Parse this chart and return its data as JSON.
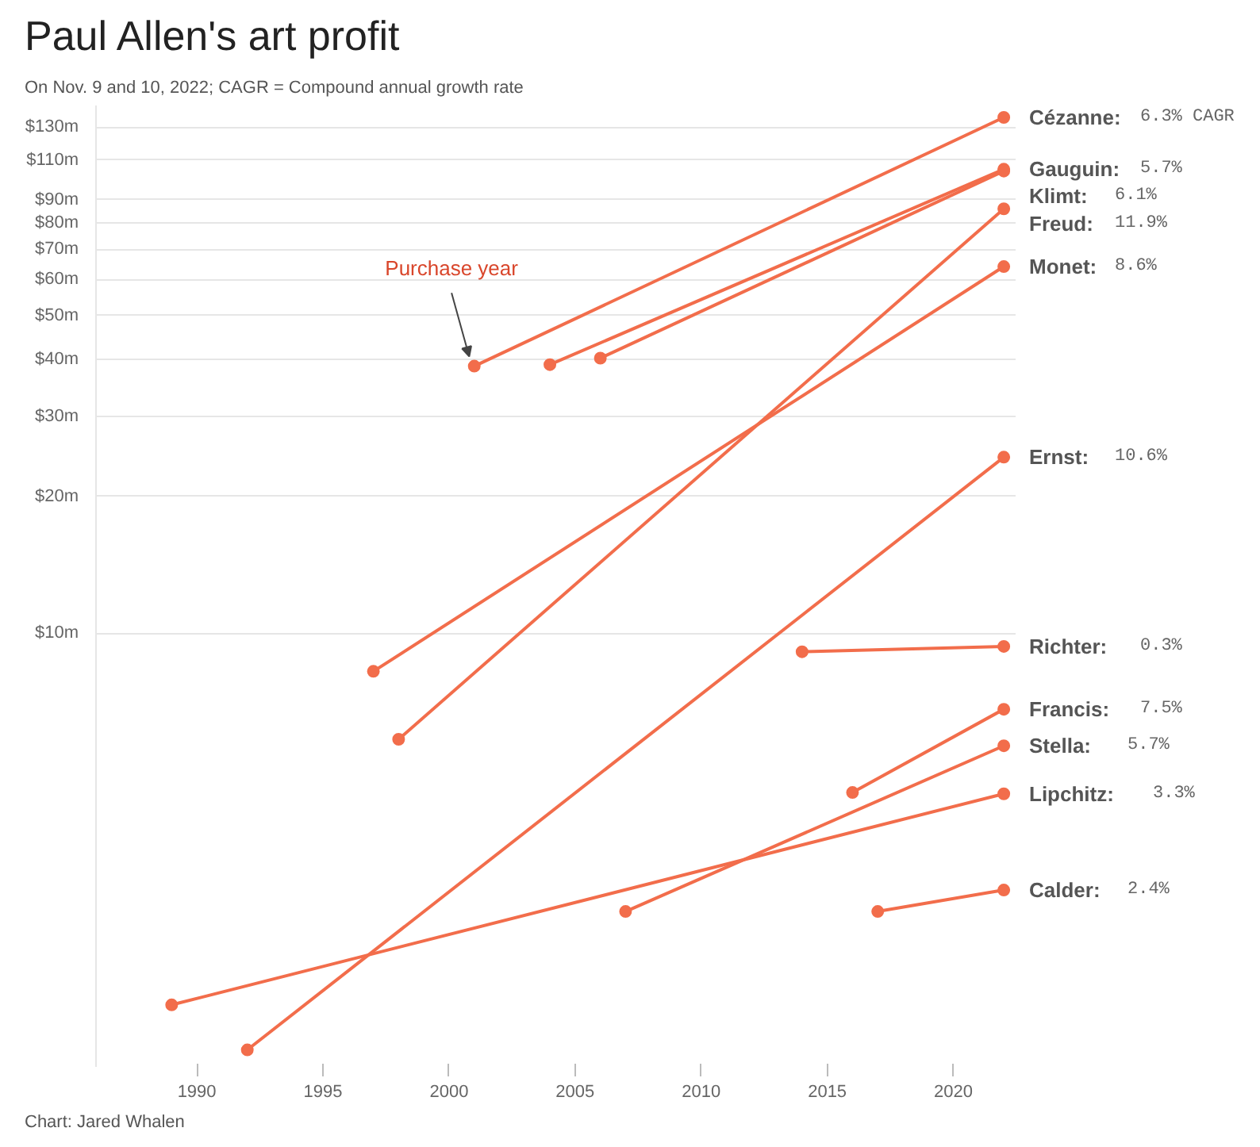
{
  "chart_data": {
    "type": "line",
    "title": "Paul Allen's art profit",
    "subtitle": "On Nov. 9 and 10, 2022; CAGR = Compound annual growth rate",
    "log": "y",
    "grid": "y",
    "marker": "circle",
    "line_style": "solid",
    "legend": false,
    "xlim": [
      1986,
      2022.5
    ],
    "xticks": [
      1990,
      1995,
      2000,
      2005,
      2010,
      2015,
      2020
    ],
    "ylim": [
      1.11,
      145
    ],
    "yticks": [
      {
        "value": 10,
        "label": "$10m"
      },
      {
        "value": 20,
        "label": "$20m"
      },
      {
        "value": 30,
        "label": "$30m"
      },
      {
        "value": 40,
        "label": "$40m"
      },
      {
        "value": 50,
        "label": "$50m"
      },
      {
        "value": 60,
        "label": "$60m"
      },
      {
        "value": 70,
        "label": "$70m"
      },
      {
        "value": 80,
        "label": "$80m"
      },
      {
        "value": 90,
        "label": "$90m"
      },
      {
        "value": 110,
        "label": "$110m"
      },
      {
        "value": 130,
        "label": "$130m"
      }
    ],
    "series": [
      {
        "name": "Cézanne: 6.3% CAGR",
        "color": "#f26d4b",
        "x": [
          2001,
          2022
        ],
        "values": [
          38.7,
          136.5
        ]
      },
      {
        "name": "Gauguin: 5.7%",
        "color": "#f26d4b",
        "x": [
          2004,
          2022
        ],
        "values": [
          39.0,
          105
        ]
      },
      {
        "name": "Klimt: 6.1%",
        "color": "#f26d4b",
        "x": [
          2006,
          2022
        ],
        "values": [
          40.3,
          104
        ]
      },
      {
        "name": "Freud: 11.9%",
        "color": "#f26d4b",
        "x": [
          1998,
          2022
        ],
        "values": [
          5.84,
          85.9
        ]
      },
      {
        "name": "Monet: 8.6%",
        "color": "#f26d4b",
        "x": [
          1997,
          2022
        ],
        "values": [
          8.24,
          64.1
        ]
      },
      {
        "name": "Ernst: 10.6%",
        "color": "#f26d4b",
        "x": [
          1992,
          2022
        ],
        "values": [
          1.21,
          24.4
        ]
      },
      {
        "name": "Richter: 0.3%",
        "color": "#f26d4b",
        "x": [
          2014,
          2022
        ],
        "values": [
          9.1,
          9.35
        ]
      },
      {
        "name": "Francis: 7.5%",
        "color": "#f26d4b",
        "x": [
          2016,
          2022
        ],
        "values": [
          4.46,
          6.8
        ]
      },
      {
        "name": "Stella: 5.7%",
        "color": "#f26d4b",
        "x": [
          2007,
          2022
        ],
        "values": [
          2.44,
          5.65
        ]
      },
      {
        "name": "Lipchitz: 3.3%",
        "color": "#f26d4b",
        "x": [
          1989,
          2022
        ],
        "values": [
          1.52,
          4.43
        ]
      },
      {
        "name": "Calder: 2.4%",
        "color": "#f26d4b",
        "x": [
          2017,
          2022
        ],
        "values": [
          2.44,
          2.72
        ]
      }
    ],
    "annotations": [
      {
        "text": "Purchase year",
        "x": 2001,
        "y": 38.7
      },
      "Chart: Jared Whalen"
    ]
  }
}
